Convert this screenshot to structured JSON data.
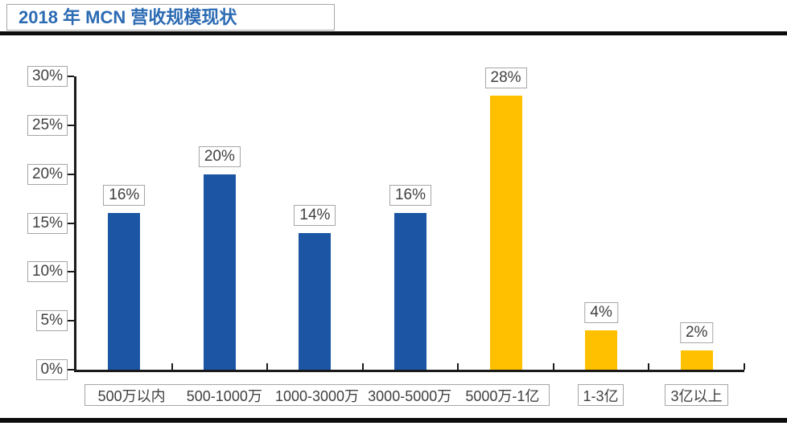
{
  "header": {
    "title": "2018 年 MCN 营收规模现状"
  },
  "chart_data": {
    "type": "bar",
    "title": "2018 年 MCN 营收规模现状",
    "categories": [
      "500万以内",
      "500-1000万",
      "1000-3000万",
      "3000-5000万",
      "5000万-1亿",
      "1-3亿",
      "3亿以上"
    ],
    "values": [
      16,
      20,
      14,
      16,
      28,
      4,
      2
    ],
    "value_labels": [
      "16%",
      "20%",
      "14%",
      "16%",
      "28%",
      "4%",
      "2%"
    ],
    "bar_colors": [
      "#1b55a4",
      "#1b55a4",
      "#1b55a4",
      "#1b55a4",
      "#ffc000",
      "#ffc000",
      "#ffc000"
    ],
    "xlabel": "",
    "ylabel": "",
    "ylim": [
      0,
      30
    ],
    "y_tick_step": 5,
    "y_ticks": [
      "0%",
      "5%",
      "10%",
      "15%",
      "20%",
      "25%",
      "30%"
    ],
    "grid": false,
    "legend": false,
    "label_grouping": "first five category labels share one outlined box; last two have individual boxes"
  },
  "colors": {
    "bar_blue": "#1b55a4",
    "bar_yellow": "#ffc000",
    "title_blue": "#2c6bb3",
    "label_text": "#404040",
    "box_border": "#a6a6a6",
    "axis_line": "#1a1a1a",
    "rule_line": "#0c0c0c"
  }
}
